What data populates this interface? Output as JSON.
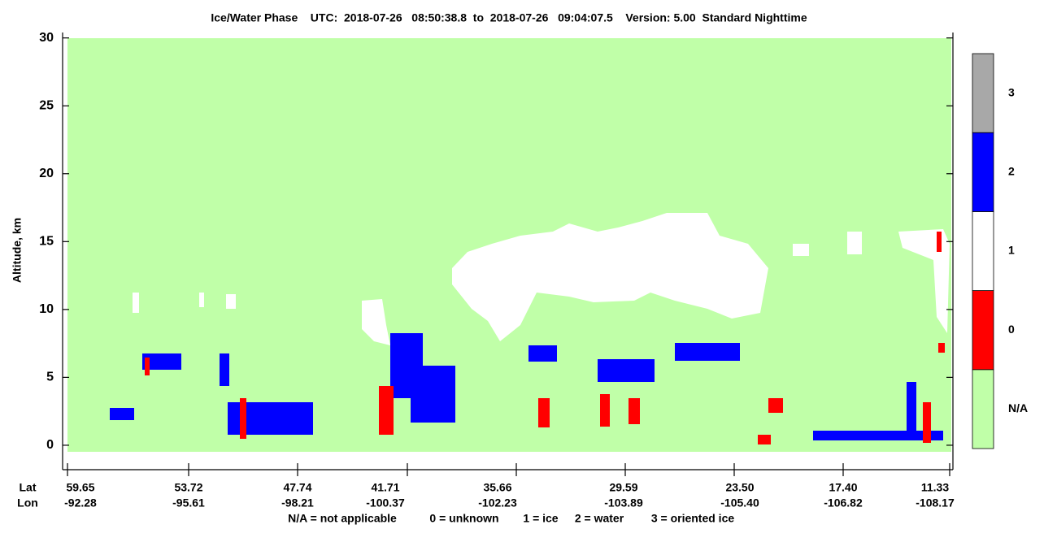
{
  "chart_data": {
    "type": "heatmap",
    "title": "Ice/Water Phase    UTC:  2018-07-26   08:50:38.8  to  2018-07-26   09:04:07.5    Version: 5.00  Standard Nighttime",
    "ylabel": "Altitude, km",
    "ylim": [
      -1.8,
      30.4
    ],
    "yticks": [
      0,
      5,
      10,
      15,
      20,
      25,
      30
    ],
    "x_axis_names": [
      "Lat",
      "Lon"
    ],
    "lat_labels": [
      "59.65",
      "53.72",
      "47.74",
      "41.71",
      "35.66",
      "29.59",
      "23.50",
      "17.40",
      "11.33"
    ],
    "lon_labels": [
      "-92.28",
      "-95.61",
      "-98.21",
      "-100.37",
      "-102.23",
      "-103.89",
      "-105.40",
      "-106.82",
      "-108.17"
    ],
    "colorbar": {
      "categories": [
        "N/A",
        "0",
        "1",
        "2",
        "3"
      ],
      "colors": [
        "#c0ffa8",
        "#ff0000",
        "#ffffff",
        "#0000ff",
        "#a8a8a8"
      ]
    },
    "legend": [
      "N/A = not applicable",
      "0 = unknown",
      "1 = ice",
      "2 = water",
      "3 = oriented ice"
    ]
  }
}
